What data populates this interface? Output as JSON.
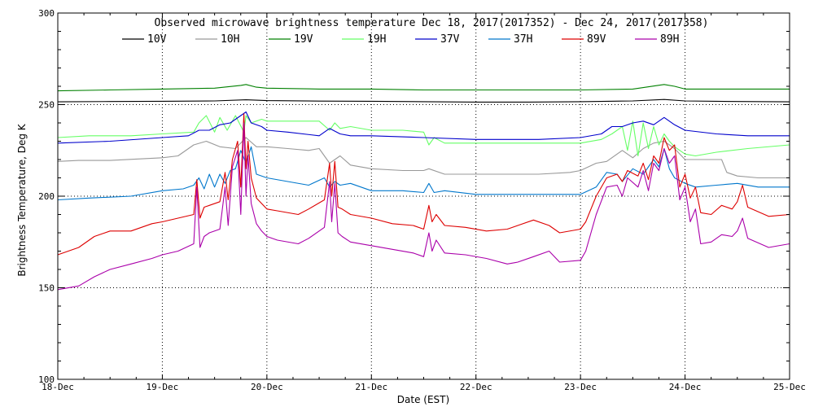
{
  "chart_data": {
    "type": "line",
    "title": "Observed microwave brightness temperature Dec 18, 2017(2017352) - Dec 24, 2017(2017358)",
    "xlabel": "Date (EST)",
    "ylabel": "Brightness Temperature, Deg K",
    "ylim": [
      100,
      300
    ],
    "xlim": [
      0,
      7
    ],
    "x_tick_labels": [
      "18-Dec",
      "19-Dec",
      "20-Dec",
      "21-Dec",
      "22-Dec",
      "23-Dec",
      "24-Dec",
      "25-Dec"
    ],
    "y_tick_labels": [
      "100",
      "150",
      "200",
      "250",
      "300"
    ],
    "grid": "dotted",
    "legend_position": "top",
    "series": [
      {
        "name": "10V",
        "color": "#000000",
        "x": [
          0,
          0.5,
          1,
          1.5,
          1.8,
          2,
          2.5,
          3,
          3.5,
          4,
          4.5,
          5,
          5.5,
          5.8,
          6,
          6.5,
          7
        ],
        "y": [
          251.5,
          251.7,
          251.8,
          252,
          252.6,
          252.2,
          251.9,
          251.8,
          251.6,
          251.4,
          251.4,
          251.6,
          252,
          252.8,
          252,
          251.7,
          251.5
        ]
      },
      {
        "name": "10H",
        "color": "#999999",
        "x": [
          0,
          0.2,
          0.5,
          1.0,
          1.15,
          1.3,
          1.42,
          1.55,
          1.7,
          1.8,
          1.9,
          2.0,
          2.2,
          2.4,
          2.5,
          2.6,
          2.7,
          2.8,
          3.0,
          3.3,
          3.5,
          3.55,
          3.7,
          4.0,
          4.3,
          4.6,
          4.9,
          5.0,
          5.15,
          5.25,
          5.4,
          5.5,
          5.6,
          5.7,
          5.8,
          5.9,
          6.0,
          6.2,
          6.35,
          6.4,
          6.5,
          6.7,
          6.9,
          7.0
        ],
        "y": [
          219,
          219.5,
          219.5,
          221,
          222,
          228,
          230,
          227,
          226,
          232,
          227,
          227,
          226,
          225,
          226,
          218,
          222,
          217,
          215,
          214,
          214,
          215,
          212,
          212,
          212,
          212,
          213,
          214,
          218,
          219,
          225,
          221,
          226,
          229,
          230,
          226,
          220,
          220,
          220,
          213,
          211,
          210,
          210,
          210
        ]
      },
      {
        "name": "19V",
        "color": "#008000",
        "x": [
          0,
          0.5,
          1,
          1.5,
          1.75,
          1.8,
          1.9,
          2,
          2.5,
          3,
          3.5,
          4,
          4.5,
          5,
          5.5,
          5.8,
          5.9,
          6,
          6.5,
          7
        ],
        "y": [
          257.5,
          258,
          258.5,
          259,
          260.5,
          261,
          259.5,
          259,
          258.5,
          258.5,
          258,
          258,
          258,
          258,
          258.5,
          261,
          260,
          258.5,
          258.5,
          258.5
        ]
      },
      {
        "name": "19H",
        "color": "#66ff66",
        "x": [
          0,
          0.3,
          0.7,
          1.0,
          1.3,
          1.35,
          1.42,
          1.5,
          1.55,
          1.62,
          1.7,
          1.78,
          1.8,
          1.85,
          1.95,
          2.0,
          2.3,
          2.5,
          2.6,
          2.65,
          2.7,
          2.8,
          3.0,
          3.3,
          3.5,
          3.55,
          3.6,
          3.7,
          3.9,
          4.3,
          4.7,
          5.0,
          5.2,
          5.3,
          5.4,
          5.45,
          5.5,
          5.55,
          5.6,
          5.65,
          5.7,
          5.75,
          5.8,
          5.85,
          5.9,
          6.0,
          6.1,
          6.3,
          6.6,
          7.0
        ],
        "y": [
          232,
          233,
          233,
          234,
          235,
          240,
          244,
          235,
          243,
          236,
          244,
          235,
          244,
          240,
          242,
          241,
          241,
          241,
          236,
          240,
          237,
          238,
          236,
          236,
          235,
          228,
          232,
          229,
          229,
          229,
          229,
          229,
          231,
          234,
          238,
          225,
          241,
          222,
          240,
          226,
          238,
          228,
          234,
          230,
          227,
          223,
          222,
          224,
          226,
          228
        ]
      },
      {
        "name": "37V",
        "color": "#0000cc",
        "x": [
          0,
          0.5,
          1.0,
          1.25,
          1.35,
          1.45,
          1.55,
          1.65,
          1.75,
          1.8,
          1.85,
          1.95,
          2.0,
          2.2,
          2.5,
          2.6,
          2.7,
          2.8,
          3.0,
          3.5,
          4.0,
          4.3,
          4.6,
          5.0,
          5.2,
          5.3,
          5.4,
          5.5,
          5.6,
          5.7,
          5.8,
          5.9,
          6.0,
          6.3,
          6.6,
          7.0
        ],
        "y": [
          229,
          230,
          232,
          233,
          236,
          236,
          239,
          240,
          244,
          246,
          240,
          238,
          236,
          235,
          233,
          237,
          234,
          233,
          233,
          232,
          231,
          231,
          231,
          232,
          234,
          238,
          238,
          240,
          241,
          239,
          243,
          239,
          236,
          234,
          233,
          233
        ]
      },
      {
        "name": "37H",
        "color": "#0077cc",
        "x": [
          0,
          0.3,
          0.7,
          1.0,
          1.2,
          1.3,
          1.35,
          1.4,
          1.45,
          1.5,
          1.55,
          1.6,
          1.65,
          1.7,
          1.75,
          1.8,
          1.85,
          1.9,
          2.0,
          2.2,
          2.4,
          2.55,
          2.6,
          2.65,
          2.7,
          2.8,
          3.0,
          3.3,
          3.5,
          3.55,
          3.6,
          3.7,
          4.0,
          4.3,
          4.6,
          5.0,
          5.15,
          5.25,
          5.35,
          5.4,
          5.5,
          5.6,
          5.7,
          5.75,
          5.8,
          5.85,
          5.9,
          6.0,
          6.1,
          6.3,
          6.5,
          6.7,
          7.0
        ],
        "y": [
          198,
          199,
          200,
          203,
          204,
          206,
          210,
          204,
          212,
          205,
          212,
          207,
          214,
          215,
          225,
          218,
          227,
          212,
          210,
          208,
          206,
          210,
          205,
          208,
          206,
          207,
          203,
          203,
          202,
          207,
          202,
          203,
          201,
          201,
          201,
          201,
          205,
          213,
          212,
          208,
          215,
          212,
          220,
          216,
          226,
          215,
          210,
          207,
          205,
          206,
          207,
          205,
          205
        ]
      },
      {
        "name": "89V",
        "color": "#dd0000",
        "x": [
          0,
          0.2,
          0.35,
          0.5,
          0.7,
          0.9,
          1.0,
          1.15,
          1.3,
          1.33,
          1.36,
          1.4,
          1.45,
          1.55,
          1.6,
          1.63,
          1.67,
          1.72,
          1.75,
          1.78,
          1.8,
          1.82,
          1.85,
          1.9,
          1.95,
          2.0,
          2.1,
          2.3,
          2.4,
          2.55,
          2.6,
          2.62,
          2.65,
          2.68,
          2.72,
          2.8,
          3.0,
          3.2,
          3.4,
          3.5,
          3.55,
          3.58,
          3.62,
          3.7,
          3.9,
          4.1,
          4.3,
          4.4,
          4.55,
          4.7,
          4.8,
          5.0,
          5.05,
          5.15,
          5.25,
          5.35,
          5.4,
          5.45,
          5.55,
          5.6,
          5.65,
          5.7,
          5.75,
          5.8,
          5.85,
          5.9,
          5.95,
          6.0,
          6.05,
          6.1,
          6.15,
          6.25,
          6.35,
          6.45,
          6.5,
          6.55,
          6.6,
          6.8,
          7.0
        ],
        "y": [
          168,
          172,
          178,
          181,
          181,
          185,
          186,
          188,
          190,
          209,
          188,
          194,
          195,
          197,
          213,
          198,
          220,
          230,
          205,
          245,
          215,
          230,
          210,
          199,
          196,
          193,
          192,
          190,
          193,
          198,
          218,
          200,
          219,
          194,
          193,
          190,
          188,
          185,
          184,
          182,
          195,
          186,
          190,
          184,
          183,
          181,
          182,
          184,
          187,
          184,
          180,
          182,
          186,
          200,
          210,
          212,
          208,
          214,
          211,
          218,
          209,
          222,
          218,
          232,
          225,
          228,
          205,
          212,
          199,
          205,
          191,
          190,
          195,
          193,
          197,
          206,
          194,
          189,
          190
        ]
      },
      {
        "name": "89H",
        "color": "#aa00aa",
        "x": [
          0,
          0.2,
          0.35,
          0.5,
          0.7,
          0.9,
          1.0,
          1.15,
          1.3,
          1.33,
          1.36,
          1.4,
          1.45,
          1.55,
          1.6,
          1.63,
          1.67,
          1.72,
          1.75,
          1.78,
          1.8,
          1.82,
          1.85,
          1.9,
          1.95,
          2.0,
          2.1,
          2.3,
          2.4,
          2.55,
          2.6,
          2.62,
          2.65,
          2.68,
          2.72,
          2.8,
          3.0,
          3.2,
          3.4,
          3.5,
          3.55,
          3.58,
          3.62,
          3.7,
          3.9,
          4.1,
          4.3,
          4.4,
          4.55,
          4.7,
          4.8,
          5.0,
          5.05,
          5.15,
          5.25,
          5.35,
          5.4,
          5.45,
          5.55,
          5.6,
          5.65,
          5.7,
          5.75,
          5.8,
          5.85,
          5.9,
          5.95,
          6.0,
          6.05,
          6.1,
          6.15,
          6.25,
          6.35,
          6.45,
          6.5,
          6.55,
          6.6,
          6.8,
          7.0
        ],
        "y": [
          149,
          151,
          156,
          160,
          163,
          166,
          168,
          170,
          174,
          205,
          172,
          178,
          180,
          182,
          205,
          184,
          216,
          225,
          190,
          240,
          200,
          222,
          196,
          185,
          181,
          178,
          176,
          174,
          177,
          183,
          208,
          186,
          207,
          180,
          178,
          175,
          173,
          171,
          169,
          167,
          180,
          170,
          176,
          169,
          168,
          166,
          163,
          164,
          167,
          170,
          164,
          165,
          170,
          190,
          205,
          206,
          200,
          210,
          205,
          214,
          203,
          218,
          214,
          226,
          218,
          222,
          198,
          205,
          186,
          193,
          174,
          175,
          179,
          178,
          181,
          188,
          177,
          172,
          174
        ]
      }
    ]
  }
}
